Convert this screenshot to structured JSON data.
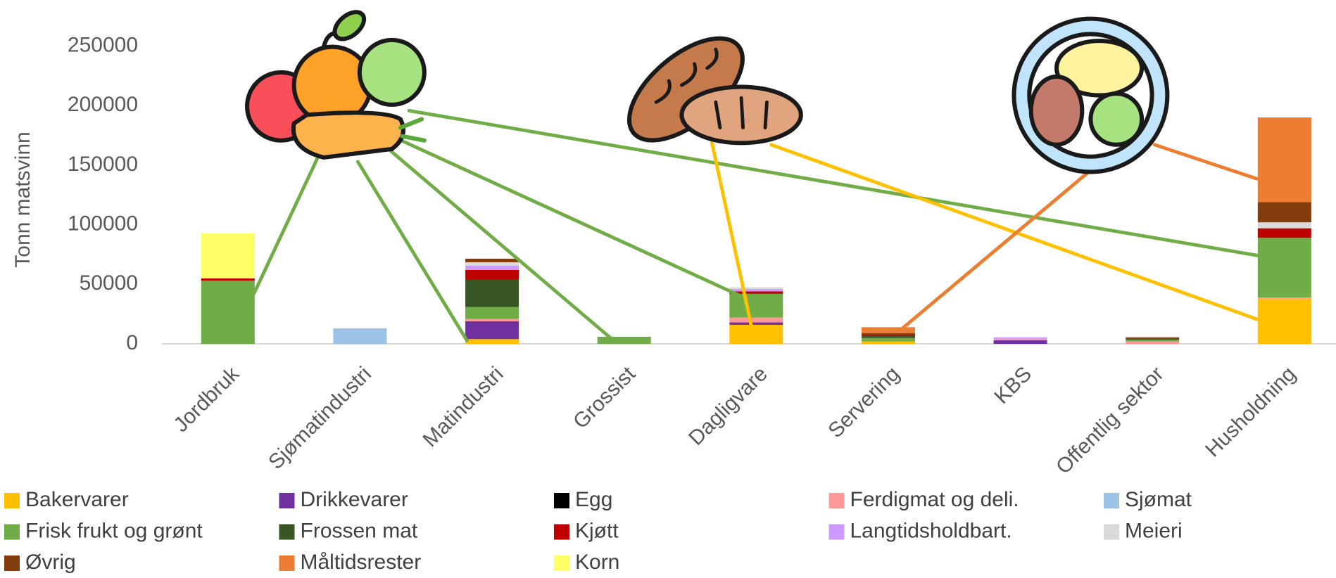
{
  "chart_data": {
    "type": "stacked_bar",
    "y_label": "Tonn matsvinn",
    "categories": [
      "Jordbruk",
      "Sjømatindustri",
      "Matindustri",
      "Grossist",
      "Dagligvare",
      "Servering",
      "KBS",
      "Offentlig sektor",
      "Husholdning"
    ],
    "ylim": [
      0,
      250000
    ],
    "yticks": [
      0,
      50000,
      100000,
      150000,
      200000,
      250000
    ],
    "grid": false,
    "legend": "bottom",
    "series": [
      {
        "name": "Bakervarer",
        "color": "#ffc000",
        "values": [
          0,
          0,
          4000,
          0,
          16000,
          2000,
          0,
          0,
          38000
        ]
      },
      {
        "name": "Drikkevarer",
        "color": "#7030a0",
        "values": [
          0,
          0,
          15000,
          0,
          2000,
          0,
          3000,
          0,
          0
        ]
      },
      {
        "name": "Egg",
        "color": "#000000",
        "values": [
          0,
          0,
          0,
          0,
          0,
          0,
          0,
          0,
          0
        ]
      },
      {
        "name": "Ferdigmat og deli.",
        "color": "#ff9999",
        "values": [
          0,
          0,
          2000,
          0,
          4000,
          0,
          1000,
          2000,
          1000
        ]
      },
      {
        "name": "Sjømat",
        "color": "#9dc3e6",
        "values": [
          0,
          13000,
          0,
          0,
          0,
          0,
          0,
          0,
          0
        ]
      },
      {
        "name": "Frisk frukt og grønt",
        "color": "#70ad47",
        "values": [
          53000,
          0,
          10000,
          6000,
          20000,
          3000,
          0,
          1500,
          50000
        ]
      },
      {
        "name": "Frossen mat",
        "color": "#375623",
        "values": [
          0,
          0,
          23000,
          0,
          0,
          1500,
          0,
          1000,
          0
        ]
      },
      {
        "name": "Kjøtt",
        "color": "#c00000",
        "values": [
          2000,
          0,
          8000,
          0,
          2000,
          1000,
          0,
          0,
          8000
        ]
      },
      {
        "name": "Langtidsholdbart.",
        "color": "#cc99ff",
        "values": [
          0,
          0,
          3500,
          0,
          2000,
          0,
          1500,
          0,
          0
        ]
      },
      {
        "name": "Meieri",
        "color": "#d9d9d9",
        "values": [
          0,
          0,
          3000,
          0,
          1500,
          0,
          0,
          0,
          5000
        ]
      },
      {
        "name": "Øvrig",
        "color": "#843c0c",
        "values": [
          0,
          0,
          3000,
          0,
          0,
          1500,
          0,
          1000,
          17000
        ]
      },
      {
        "name": "Måltidsrester",
        "color": "#ed7d31",
        "values": [
          0,
          0,
          0,
          0,
          0,
          5000,
          0,
          0,
          71000
        ]
      },
      {
        "name": "Korn",
        "color": "#ffff66",
        "values": [
          38000,
          0,
          0,
          0,
          0,
          0,
          0,
          0,
          0
        ]
      }
    ]
  }
}
